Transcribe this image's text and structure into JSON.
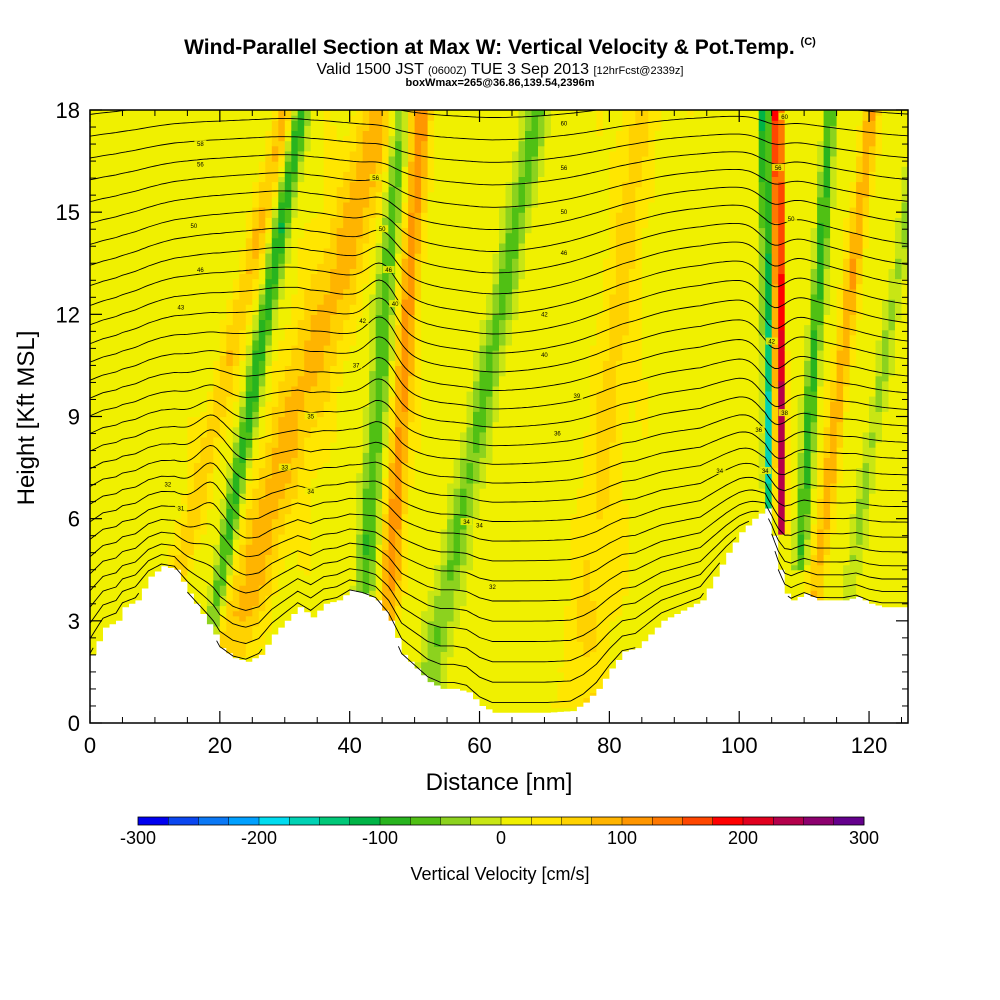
{
  "title": {
    "main": "Wind-Parallel Section at Max W: Vertical Velocity & Pot.Temp.",
    "copyright": "(C)",
    "valid_prefix": "Valid 1500 JST",
    "valid_zulu": "(0600Z)",
    "valid_date": "TUE 3 Sep 2013",
    "forecast_info": "[12hrFcst@2339z]",
    "box_info": "boxWmax=265@36.86,139.54,2396m"
  },
  "chart_data": {
    "type": "heatmap",
    "xlabel": "Distance [nm]",
    "ylabel": "Height [Kft MSL]",
    "xlim": [
      0,
      126
    ],
    "ylim": [
      0,
      18
    ],
    "x_ticks": [
      "0",
      "20",
      "40",
      "60",
      "80",
      "100",
      "120"
    ],
    "y_ticks": [
      "0",
      "3",
      "6",
      "9",
      "12",
      "15",
      "18"
    ],
    "colorbar": {
      "title": "Vertical Velocity [cm/s]",
      "range": [
        -300,
        300
      ],
      "tick_labels": [
        "-300",
        "-200",
        "-100",
        "0",
        "100",
        "200",
        "300"
      ],
      "colors": [
        "#0000f0",
        "#0a46f0",
        "#0a78f5",
        "#00a0ff",
        "#00dcf0",
        "#00d2b4",
        "#00c878",
        "#00b446",
        "#28b41e",
        "#50c014",
        "#8cd21e",
        "#c8e614",
        "#f0f000",
        "#ffe600",
        "#ffd200",
        "#ffb400",
        "#ff9600",
        "#ff7800",
        "#ff4600",
        "#ff0000",
        "#e1001e",
        "#b4004b",
        "#8c006e",
        "#64008c"
      ]
    },
    "terrain": [
      [
        0,
        2
      ],
      [
        2,
        2.8
      ],
      [
        4,
        3
      ],
      [
        5,
        3.4
      ],
      [
        7,
        3.6
      ],
      [
        9,
        4.3
      ],
      [
        11,
        4.6
      ],
      [
        13,
        4.5
      ],
      [
        15,
        3.8
      ],
      [
        17,
        3.2
      ],
      [
        19,
        2.6
      ],
      [
        20,
        2.2
      ],
      [
        22,
        1.9
      ],
      [
        24,
        1.8
      ],
      [
        26,
        2.0
      ],
      [
        28,
        2.6
      ],
      [
        30,
        3.0
      ],
      [
        32,
        3.4
      ],
      [
        34,
        3.1
      ],
      [
        36,
        3.5
      ],
      [
        38,
        3.6
      ],
      [
        40,
        3.9
      ],
      [
        42,
        3.8
      ],
      [
        44,
        3.6
      ],
      [
        46,
        3.0
      ],
      [
        48,
        2.0
      ],
      [
        50,
        1.6
      ],
      [
        52,
        1.2
      ],
      [
        54,
        1.0
      ],
      [
        56,
        1.0
      ],
      [
        58,
        0.9
      ],
      [
        60,
        0.5
      ],
      [
        62,
        0.3
      ],
      [
        66,
        0.3
      ],
      [
        70,
        0.3
      ],
      [
        74,
        0.35
      ],
      [
        76,
        0.6
      ],
      [
        78,
        1.0
      ],
      [
        80,
        1.6
      ],
      [
        82,
        2.1
      ],
      [
        84,
        2.2
      ],
      [
        86,
        2.6
      ],
      [
        88,
        3.0
      ],
      [
        90,
        3.2
      ],
      [
        92,
        3.4
      ],
      [
        94,
        3.6
      ],
      [
        96,
        4.3
      ],
      [
        98,
        5.0
      ],
      [
        100,
        5.6
      ],
      [
        102,
        6.0
      ],
      [
        104,
        6.3
      ],
      [
        105,
        5.5
      ],
      [
        106,
        4.5
      ],
      [
        107,
        3.8
      ],
      [
        108,
        3.6
      ],
      [
        110,
        3.8
      ],
      [
        112,
        3.6
      ],
      [
        114,
        3.6
      ],
      [
        116,
        3.6
      ],
      [
        118,
        3.7
      ],
      [
        120,
        3.5
      ],
      [
        122,
        3.4
      ],
      [
        126,
        3.4
      ]
    ],
    "updrafts": [
      {
        "x0": 14,
        "h0": 4.5,
        "slope": 1.2,
        "width": 1.6,
        "w": 60
      },
      {
        "x0": 22,
        "h0": 2.5,
        "slope": 1.5,
        "width": 4.0,
        "w": 70
      },
      {
        "x0": 46,
        "h0": 3.5,
        "slope": 0.35,
        "width": 1.5,
        "w": 100
      },
      {
        "x0": 76,
        "h0": 1.0,
        "slope": 0.5,
        "width": 3.0,
        "w": 40
      },
      {
        "x0": 106.5,
        "h0": 6.0,
        "slope": -0.05,
        "width": 0.7,
        "w": 220
      },
      {
        "x0": 112,
        "h0": 4.0,
        "slope": 0.6,
        "width": 1.2,
        "w": 80
      }
    ],
    "downdrafts": [
      {
        "x0": 19,
        "h0": 3.0,
        "slope": 0.9,
        "width": 1.3,
        "w": -110
      },
      {
        "x0": 42,
        "h0": 3.5,
        "slope": 0.4,
        "width": 1.5,
        "w": -90
      },
      {
        "x0": 52,
        "h0": 1.0,
        "slope": 1.0,
        "width": 2.0,
        "w": -70
      },
      {
        "x0": 104.5,
        "h0": 6.0,
        "slope": -0.05,
        "width": 0.6,
        "w": -180
      },
      {
        "x0": 109.5,
        "h0": 5.0,
        "slope": 0.35,
        "width": 1.0,
        "w": -100
      },
      {
        "x0": 117,
        "h0": 4.0,
        "slope": 0.8,
        "width": 1.2,
        "w": -50
      }
    ],
    "isentropes": {
      "levels_kft": [
        0.6,
        1.2,
        1.8,
        2.4,
        3.0,
        3.6,
        4.2,
        4.8,
        5.4,
        6.0,
        6.6,
        7.2,
        7.8,
        8.4,
        9.0,
        9.6,
        10.2,
        10.8,
        11.4,
        12.0,
        12.6,
        13.2,
        13.8,
        14.4,
        15.0,
        15.6,
        16.2,
        16.8,
        17.4,
        18.0
      ],
      "labels": [
        {
          "x": 12,
          "h": 7.0,
          "text": "32"
        },
        {
          "x": 14,
          "h": 6.3,
          "text": "31"
        },
        {
          "x": 30,
          "h": 7.5,
          "text": "33"
        },
        {
          "x": 34,
          "h": 9.0,
          "text": "35"
        },
        {
          "x": 41,
          "h": 10.5,
          "text": "37"
        },
        {
          "x": 47,
          "h": 12.3,
          "text": "40"
        },
        {
          "x": 70,
          "h": 10.8,
          "text": "40"
        },
        {
          "x": 75,
          "h": 9.6,
          "text": "39"
        },
        {
          "x": 72,
          "h": 8.5,
          "text": "36"
        },
        {
          "x": 62,
          "h": 4.0,
          "text": "32"
        },
        {
          "x": 60,
          "h": 5.8,
          "text": "34"
        },
        {
          "x": 70,
          "h": 12.0,
          "text": "42"
        },
        {
          "x": 73,
          "h": 13.8,
          "text": "46"
        },
        {
          "x": 73,
          "h": 15.0,
          "text": "50"
        },
        {
          "x": 73,
          "h": 16.3,
          "text": "56"
        },
        {
          "x": 73,
          "h": 17.6,
          "text": "60"
        },
        {
          "x": 17,
          "h": 16.4,
          "text": "56"
        },
        {
          "x": 17,
          "h": 17.0,
          "text": "58"
        },
        {
          "x": 16,
          "h": 14.6,
          "text": "50"
        },
        {
          "x": 17,
          "h": 13.3,
          "text": "46"
        },
        {
          "x": 14,
          "h": 12.2,
          "text": "43"
        },
        {
          "x": 44,
          "h": 16.0,
          "text": "56"
        },
        {
          "x": 45,
          "h": 14.5,
          "text": "50"
        },
        {
          "x": 46,
          "h": 13.3,
          "text": "46"
        },
        {
          "x": 42,
          "h": 11.8,
          "text": "42"
        },
        {
          "x": 107,
          "h": 17.8,
          "text": "60"
        },
        {
          "x": 106,
          "h": 16.3,
          "text": "56"
        },
        {
          "x": 108,
          "h": 14.8,
          "text": "50"
        },
        {
          "x": 105,
          "h": 11.2,
          "text": "42"
        },
        {
          "x": 107,
          "h": 9.1,
          "text": "38"
        },
        {
          "x": 103,
          "h": 8.6,
          "text": "36"
        },
        {
          "x": 97,
          "h": 7.4,
          "text": "34"
        },
        {
          "x": 104,
          "h": 7.4,
          "text": "34"
        },
        {
          "x": 34,
          "h": 6.8,
          "text": "34"
        },
        {
          "x": 58,
          "h": 5.9,
          "text": "34"
        }
      ]
    }
  }
}
